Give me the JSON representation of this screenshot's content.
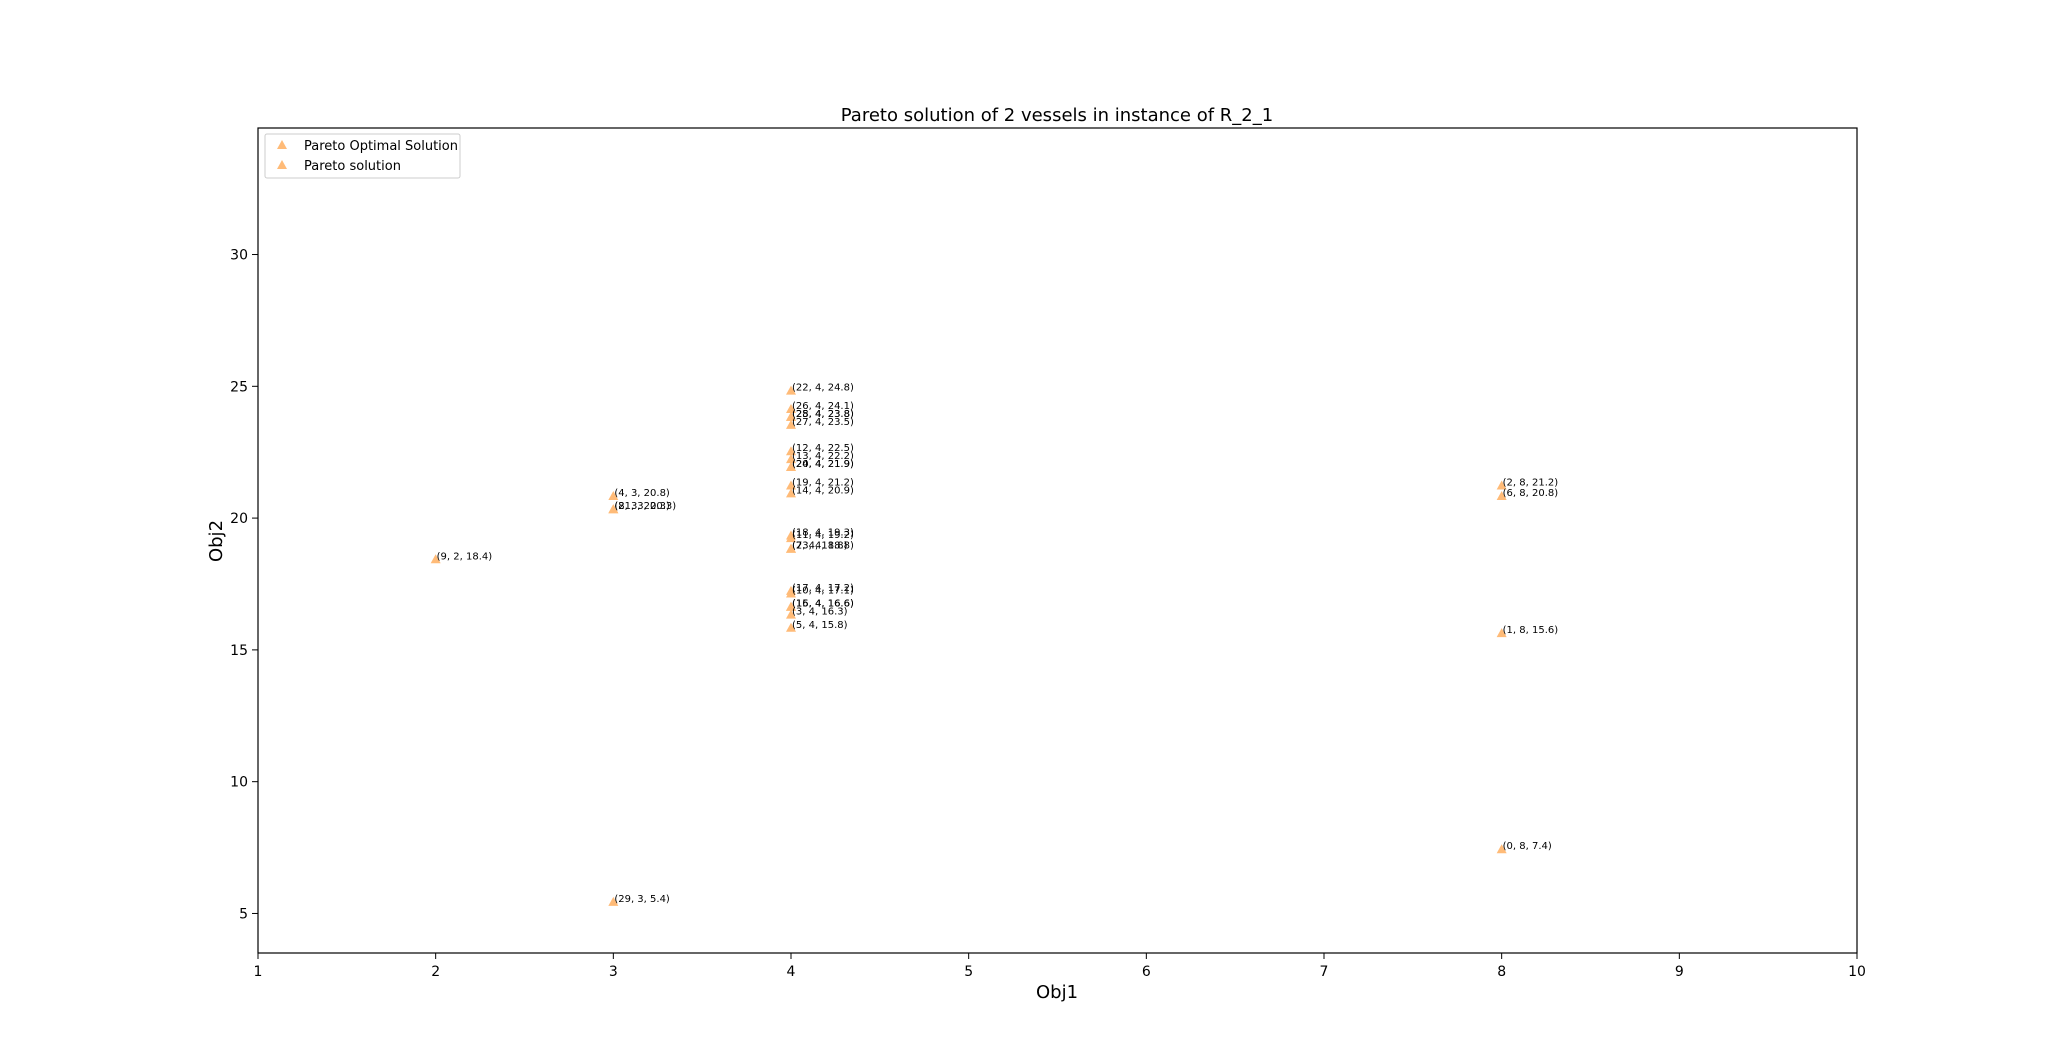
{
  "chart_data": {
    "type": "scatter",
    "title": "Pareto solution of 2 vessels in instance of R_2_1",
    "xlabel": "Obj1",
    "ylabel": "Obj2",
    "xlim": [
      1,
      10
    ],
    "ylim": [
      3.5,
      34.8
    ],
    "xticks": [
      "1",
      "2",
      "3",
      "4",
      "5",
      "6",
      "7",
      "8",
      "9",
      "10"
    ],
    "yticks": [
      "5",
      "10",
      "15",
      "20",
      "25",
      "30"
    ],
    "marker": "triangle",
    "marker_color": "#ffbb78",
    "legend": {
      "location": "upper-left",
      "entries": [
        "Pareto Optimal Solution",
        "Pareto solution"
      ]
    },
    "series": [
      {
        "name": "Pareto solution",
        "points": [
          {
            "x": 2,
            "y": 18.4,
            "label": "(9, 2, 18.4)"
          },
          {
            "x": 3,
            "y": 20.8,
            "label": "(4, 3, 20.8)"
          },
          {
            "x": 3,
            "y": 20.3,
            "label": "(8, 3, 20.3)"
          },
          {
            "x": 3,
            "y": 20.3,
            "label": "(21, 3, 20.3)"
          },
          {
            "x": 3,
            "y": 5.4,
            "label": "(29, 3, 5.4)"
          },
          {
            "x": 4,
            "y": 24.8,
            "label": "(22, 4, 24.8)"
          },
          {
            "x": 4,
            "y": 24.1,
            "label": "(26, 4, 24.1)"
          },
          {
            "x": 4,
            "y": 23.8,
            "label": "(28, 4, 23.8)"
          },
          {
            "x": 4,
            "y": 23.8,
            "label": "(25, 4, 23.8)"
          },
          {
            "x": 4,
            "y": 23.5,
            "label": "(27, 4, 23.5)"
          },
          {
            "x": 4,
            "y": 22.5,
            "label": "(12, 4, 22.5)"
          },
          {
            "x": 4,
            "y": 22.2,
            "label": "(13, 4, 22.2)"
          },
          {
            "x": 4,
            "y": 21.9,
            "label": "(20, 4, 21.9)"
          },
          {
            "x": 4,
            "y": 21.9,
            "label": "(24, 4, 21.9)"
          },
          {
            "x": 4,
            "y": 21.2,
            "label": "(19, 4, 21.2)"
          },
          {
            "x": 4,
            "y": 20.9,
            "label": "(14, 4, 20.9)"
          },
          {
            "x": 4,
            "y": 19.3,
            "label": "(18, 4, 19.3)"
          },
          {
            "x": 4,
            "y": 19.2,
            "label": "(11, 4, 19.2)"
          },
          {
            "x": 4,
            "y": 18.8,
            "label": "(7, 4, 18.8)"
          },
          {
            "x": 4,
            "y": 18.8,
            "label": "(23, 4, 18.8)"
          },
          {
            "x": 4,
            "y": 17.2,
            "label": "(17, 4, 17.2)"
          },
          {
            "x": 4,
            "y": 17.1,
            "label": "(10, 4, 17.1)"
          },
          {
            "x": 4,
            "y": 16.6,
            "label": "(15, 4, 16.6)"
          },
          {
            "x": 4,
            "y": 16.6,
            "label": "(16, 4, 16.6)"
          },
          {
            "x": 4,
            "y": 16.3,
            "label": "(3, 4, 16.3)"
          },
          {
            "x": 4,
            "y": 15.8,
            "label": "(5, 4, 15.8)"
          },
          {
            "x": 8,
            "y": 21.2,
            "label": "(2, 8, 21.2)"
          },
          {
            "x": 8,
            "y": 20.8,
            "label": "(6, 8, 20.8)"
          },
          {
            "x": 8,
            "y": 15.6,
            "label": "(1, 8, 15.6)"
          },
          {
            "x": 8,
            "y": 7.4,
            "label": "(0, 8, 7.4)"
          }
        ]
      }
    ]
  }
}
